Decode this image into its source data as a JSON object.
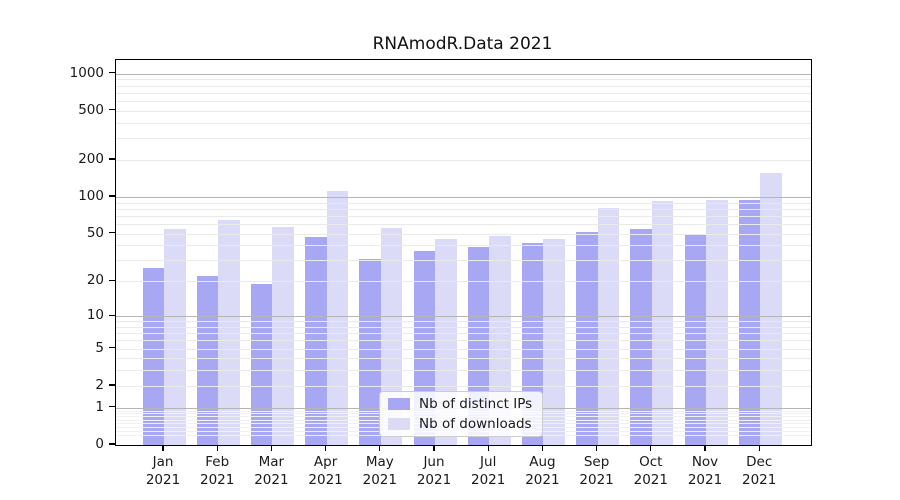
{
  "chart_data": {
    "type": "bar",
    "title": "RNAmodR.Data 2021",
    "categories": [
      "Jan",
      "Feb",
      "Mar",
      "Apr",
      "May",
      "Jun",
      "Jul",
      "Aug",
      "Sep",
      "Oct",
      "Nov",
      "Dec"
    ],
    "category_year": "2021",
    "series": [
      {
        "name": "Nb of distinct IPs",
        "color": "#a7a7f3",
        "values": [
          26,
          22,
          19,
          47,
          31,
          36,
          39,
          42,
          52,
          55,
          50,
          95
        ]
      },
      {
        "name": "Nb of downloads",
        "color": "#dbdbf8",
        "values": [
          55,
          65,
          57,
          112,
          56,
          45,
          48,
          45,
          81,
          93,
          94,
          158
        ]
      }
    ],
    "yscale": "log1p",
    "yticks": [
      0,
      1,
      2,
      5,
      10,
      20,
      50,
      100,
      200,
      500,
      1000
    ],
    "ylim": [
      0,
      1290
    ],
    "grid": true,
    "legend_position": "inside-bottom-center",
    "xlabel": "",
    "ylabel": ""
  },
  "colors": {
    "bar_distinct_ips": "#a7a7f3",
    "bar_downloads": "#dbdbf8",
    "grid_major": "#b5b5b5",
    "grid_minor": "#eaeaea",
    "axis": "#000000",
    "background": "#ffffff"
  }
}
